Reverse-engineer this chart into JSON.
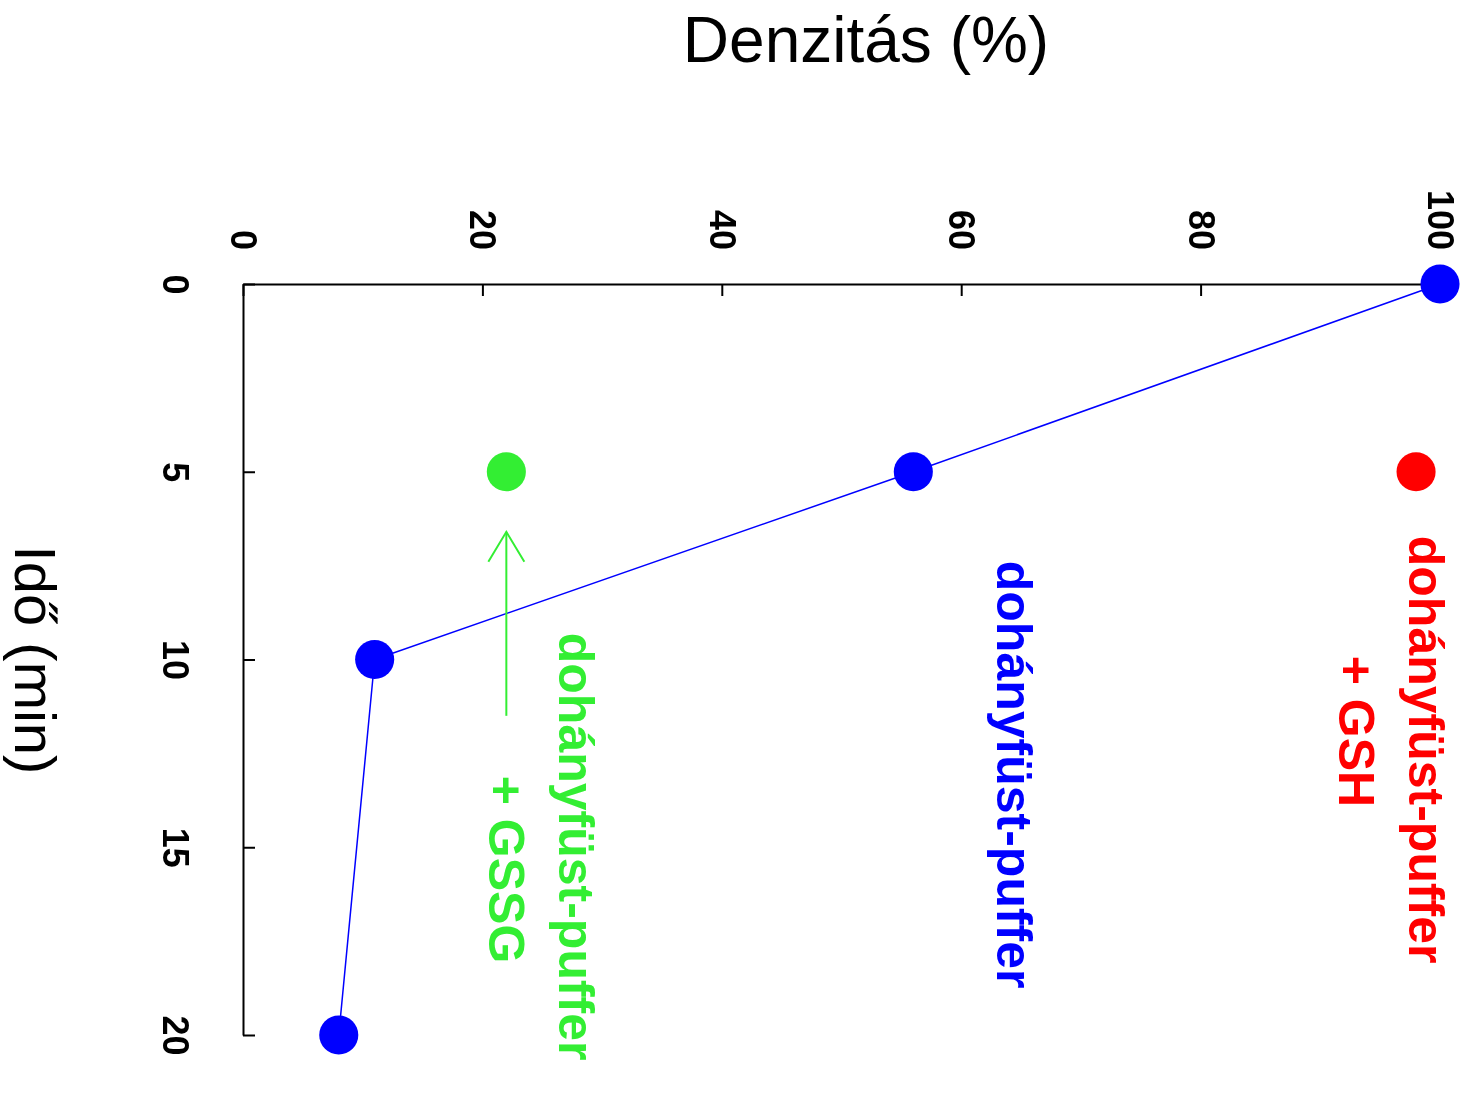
{
  "chart_data": {
    "type": "line",
    "xlabel": "Denzitás (%)",
    "ylabel": "Idő (min)",
    "xlim": [
      0,
      100
    ],
    "xticks": [
      0,
      20,
      40,
      60,
      80,
      100
    ],
    "ylim": [
      20,
      0
    ],
    "yticks": [
      0,
      5,
      10,
      15,
      20
    ],
    "marker": "circle",
    "grid": false,
    "legend": false,
    "series": [
      {
        "name": "dohányfüst-puffer + GSH",
        "type": "scatter",
        "color": "#ff0000",
        "x": [
          98
        ],
        "values": [
          5
        ]
      },
      {
        "name": "dohányfüst-puffer",
        "color": "#0000ff",
        "x": [
          100,
          56,
          11,
          8
        ],
        "values": [
          0,
          5,
          10,
          20
        ]
      },
      {
        "name": "dohányfüst-puffer + GSSG",
        "type": "scatter",
        "color": "#33ee33",
        "x": [
          22
        ],
        "values": [
          5
        ]
      }
    ]
  }
}
